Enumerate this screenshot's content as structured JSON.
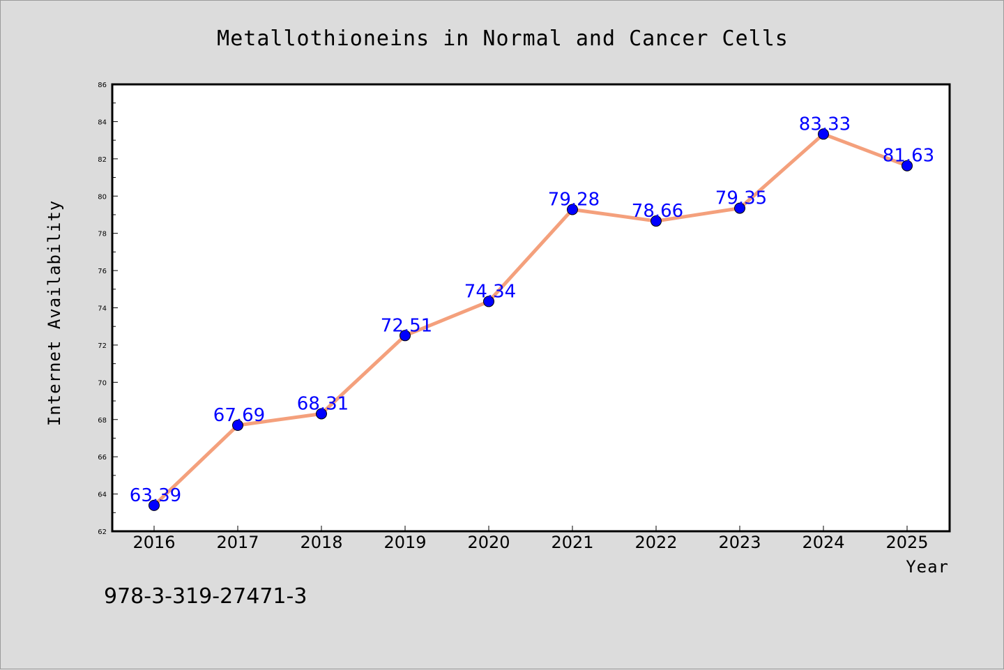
{
  "chart_data": {
    "type": "line",
    "title": "Metallothioneins in Normal and Cancer Cells",
    "xlabel": "Year",
    "ylabel": "Internet Availability",
    "categories": [
      "2016",
      "2017",
      "2018",
      "2019",
      "2020",
      "2021",
      "2022",
      "2023",
      "2024",
      "2025"
    ],
    "series": [
      {
        "values": [
          63.39,
          67.69,
          68.31,
          72.51,
          74.34,
          79.28,
          78.66,
          79.35,
          83.33,
          81.63
        ],
        "labels": [
          "63.39",
          "67.69",
          "68.31",
          "72.51",
          "74.34",
          "79.28",
          "78.66",
          "79.35",
          "83.33",
          "81.63"
        ],
        "line_color": "#f4a07c",
        "marker_color": "#0000ff"
      }
    ],
    "ylim": [
      62,
      86
    ],
    "yticks": [
      "62",
      "64",
      "66",
      "68",
      "70",
      "72",
      "74",
      "76",
      "78",
      "80",
      "82",
      "84",
      "86"
    ],
    "grid": false,
    "legend": false
  },
  "footer": {
    "isbn": "978-3-319-27471-3"
  },
  "colors": {
    "background": "#dcdcdc",
    "plot_background": "#ffffff",
    "data_label": "#0000ff"
  }
}
